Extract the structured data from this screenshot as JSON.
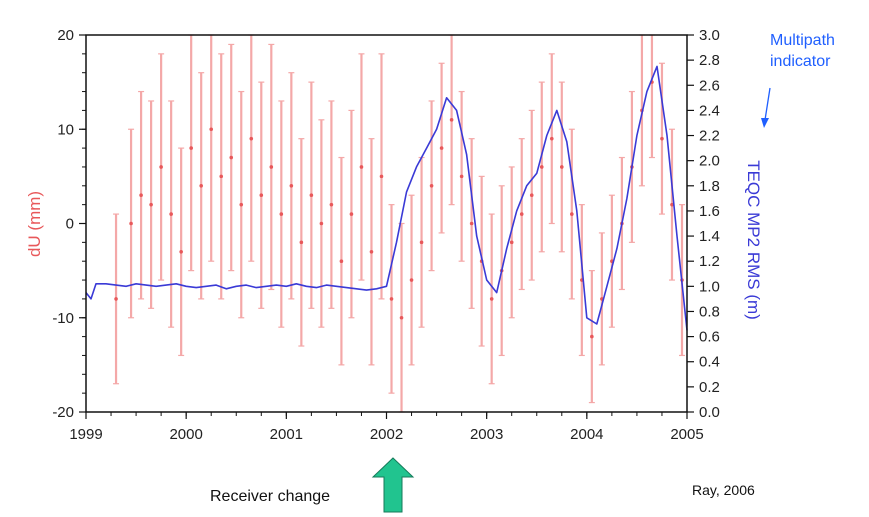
{
  "chart_data": {
    "type": "line",
    "title": "",
    "xlabel": "",
    "ylabel": "dU (mm)",
    "y2label": "TEQC MP2 RMS (m)",
    "xlim": [
      1999,
      2005
    ],
    "ylim": [
      -20,
      20
    ],
    "y2lim": [
      0.0,
      3.0
    ],
    "x_ticks": [
      "1999",
      "2000",
      "2001",
      "2002",
      "2003",
      "2004",
      "2005"
    ],
    "y_ticks": [
      "-20",
      "-10",
      "0",
      "10",
      "20"
    ],
    "y2_ticks": [
      "0.0",
      "0.2",
      "0.4",
      "0.6",
      "0.8",
      "1.0",
      "1.2",
      "1.4",
      "1.6",
      "1.8",
      "2.0",
      "2.2",
      "2.4",
      "2.6",
      "2.8",
      "3.0"
    ],
    "grid": false,
    "colors": {
      "dU": "#e8585a",
      "dU_bar": "#f4a8a8",
      "mp2": "#3a3ad6",
      "annotation": "#1f5fff",
      "arrow": "#21c48f"
    },
    "series": [
      {
        "name": "dU (mm)",
        "axis": "left",
        "style": "points-with-errorbars",
        "x": [
          1999.3,
          1999.45,
          1999.55,
          1999.65,
          1999.75,
          1999.85,
          1999.95,
          2000.05,
          2000.15,
          2000.25,
          2000.35,
          2000.45,
          2000.55,
          2000.65,
          2000.75,
          2000.85,
          2000.95,
          2001.05,
          2001.15,
          2001.25,
          2001.35,
          2001.45,
          2001.55,
          2001.65,
          2001.75,
          2001.85,
          2001.95,
          2002.05,
          2002.15,
          2002.25,
          2002.35,
          2002.45,
          2002.55,
          2002.65,
          2002.75,
          2002.85,
          2002.95,
          2003.05,
          2003.15,
          2003.25,
          2003.35,
          2003.45,
          2003.55,
          2003.65,
          2003.75,
          2003.85,
          2003.95,
          2004.05,
          2004.15,
          2004.25,
          2004.35,
          2004.45,
          2004.55,
          2004.65,
          2004.75,
          2004.85,
          2004.95
        ],
        "y": [
          -8,
          0,
          3,
          2,
          6,
          1,
          -3,
          8,
          4,
          10,
          5,
          7,
          2,
          9,
          3,
          6,
          1,
          4,
          -2,
          3,
          0,
          2,
          -4,
          1,
          6,
          -3,
          5,
          -8,
          -10,
          -6,
          -2,
          4,
          8,
          11,
          5,
          0,
          -4,
          -8,
          -5,
          -2,
          1,
          3,
          6,
          9,
          6,
          1,
          -6,
          -12,
          -8,
          -4,
          0,
          6,
          12,
          15,
          9,
          2,
          -6
        ],
        "err": [
          9,
          10,
          11,
          11,
          12,
          12,
          11,
          13,
          12,
          14,
          13,
          12,
          12,
          13,
          12,
          13,
          12,
          12,
          11,
          12,
          11,
          11,
          11,
          11,
          12,
          12,
          13,
          10,
          10,
          9,
          9,
          9,
          9,
          9,
          9,
          9,
          9,
          9,
          9,
          8,
          8,
          9,
          9,
          9,
          9,
          9,
          8,
          7,
          7,
          7,
          7,
          8,
          8,
          8,
          8,
          8,
          8
        ]
      },
      {
        "name": "TEQC MP2 RMS (m)",
        "axis": "right",
        "style": "line",
        "x": [
          1999.0,
          1999.05,
          1999.1,
          1999.2,
          1999.3,
          1999.4,
          1999.5,
          1999.6,
          1999.7,
          1999.8,
          1999.9,
          2000.0,
          2000.1,
          2000.2,
          2000.3,
          2000.4,
          2000.5,
          2000.6,
          2000.7,
          2000.8,
          2000.9,
          2001.0,
          2001.1,
          2001.2,
          2001.3,
          2001.4,
          2001.5,
          2001.6,
          2001.7,
          2001.8,
          2001.9,
          2002.0,
          2002.1,
          2002.2,
          2002.3,
          2002.4,
          2002.5,
          2002.6,
          2002.7,
          2002.8,
          2002.9,
          2003.0,
          2003.1,
          2003.2,
          2003.3,
          2003.4,
          2003.5,
          2003.6,
          2003.7,
          2003.8,
          2003.9,
          2004.0,
          2004.1,
          2004.2,
          2004.3,
          2004.4,
          2004.5,
          2004.6,
          2004.7,
          2004.8,
          2004.9,
          2005.0
        ],
        "y": [
          0.95,
          0.9,
          1.02,
          1.02,
          1.01,
          1.0,
          1.02,
          1.01,
          1.0,
          1.01,
          1.02,
          1.0,
          0.99,
          1.0,
          1.01,
          0.98,
          1.0,
          1.01,
          0.99,
          1.0,
          1.01,
          1.0,
          1.02,
          1.0,
          0.99,
          1.01,
          1.0,
          0.99,
          0.98,
          0.97,
          0.98,
          1.0,
          1.35,
          1.75,
          1.95,
          2.1,
          2.25,
          2.5,
          2.4,
          2.05,
          1.4,
          1.05,
          0.95,
          1.3,
          1.6,
          1.8,
          1.9,
          2.2,
          2.4,
          2.15,
          1.6,
          0.75,
          0.7,
          1.0,
          1.3,
          1.7,
          2.2,
          2.55,
          2.75,
          2.2,
          1.4,
          0.65
        ]
      }
    ]
  },
  "annotations": {
    "multipath_line1": "Multipath",
    "multipath_line2": "indicator",
    "receiver_change": "Receiver change",
    "credit": "Ray, 2006"
  }
}
